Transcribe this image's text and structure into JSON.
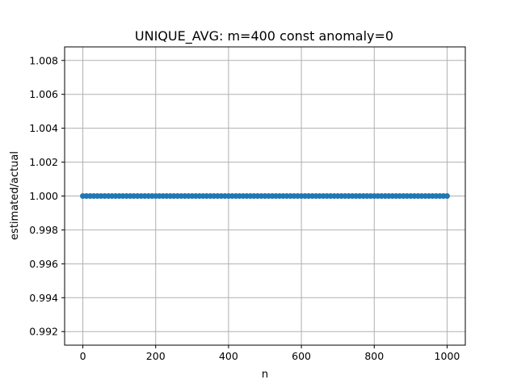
{
  "chart_data": {
    "type": "scatter",
    "title": "UNIQUE_AVG: m=400 const anomaly=0",
    "xlabel": "n",
    "ylabel": "estimated/actual",
    "xlim": [
      -50,
      1050
    ],
    "ylim": [
      0.9912,
      1.0088
    ],
    "xticks": [
      0,
      200,
      400,
      600,
      800,
      1000
    ],
    "xtick_labels": [
      "0",
      "200",
      "400",
      "600",
      "800",
      "1000"
    ],
    "yticks": [
      0.992,
      0.994,
      0.996,
      0.998,
      1.0,
      1.002,
      1.004,
      1.006,
      1.008
    ],
    "ytick_labels": [
      "0.992",
      "0.994",
      "0.996",
      "0.998",
      "1.000",
      "1.002",
      "1.004",
      "1.006",
      "1.008"
    ],
    "grid": true,
    "series": [
      {
        "color": "#1f77b4",
        "x_start": 0,
        "x_end": 1000,
        "x_step": 10,
        "y_constant": 1.0
      }
    ]
  }
}
